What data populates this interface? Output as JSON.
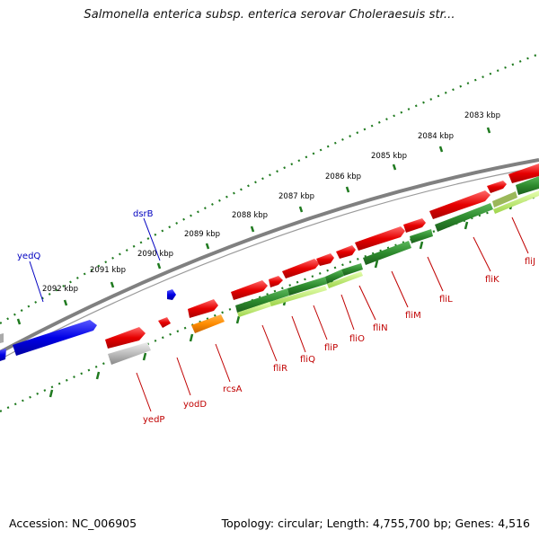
{
  "title": "Salmonella enterica subsp. enterica serovar Choleraesuis str...",
  "footer": {
    "accession": "Accession: NC_006905",
    "summary": "Topology: circular; Length: 4,755,700 bp; Genes: 4,516"
  },
  "colors": {
    "backbone": "#7a7a7a",
    "ticks": "#1f7a1f",
    "forward_gene": "#e60000",
    "reverse_gene": "#0000e6",
    "cds_green": "#2e8b2e",
    "cds_lightgreen": "#b7e85a",
    "gene_orange": "#ff8c00",
    "gene_gray": "#bdbdbd",
    "forward_label": "#c00000",
    "reverse_label": "#0000c0"
  },
  "scale_labels": [
    "2083 kbp",
    "2084 kbp",
    "2085 kbp",
    "2086 kbp",
    "2087 kbp",
    "2088 kbp",
    "2089 kbp",
    "2090 kbp",
    "2091 kbp",
    "2092 kbp"
  ],
  "forward_genes": [
    "yedP",
    "yodD",
    "rcsA",
    "fliR",
    "fliQ",
    "fliP",
    "fliO",
    "fliN",
    "fliM",
    "fliL",
    "fliK",
    "fliJ"
  ],
  "reverse_genes": [
    "yedQ",
    "dsrB"
  ]
}
